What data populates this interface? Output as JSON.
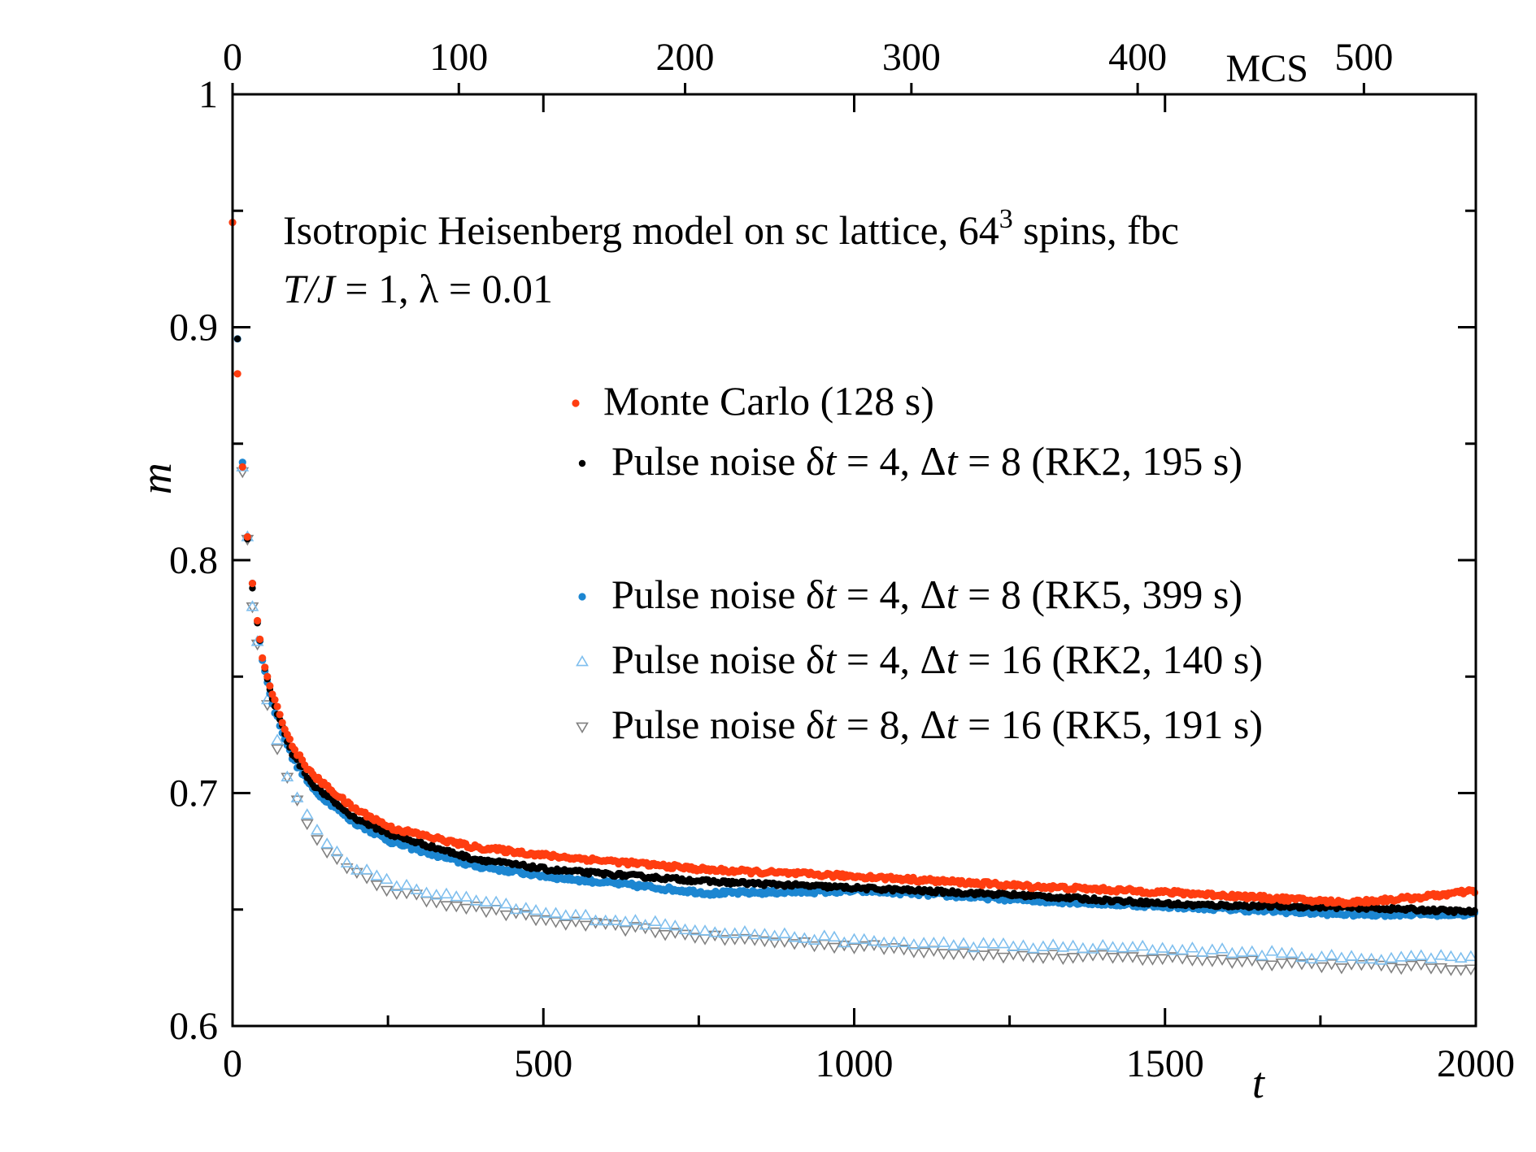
{
  "chart_data": {
    "type": "scatter",
    "title": "",
    "xlabel": "t",
    "ylabel": "m",
    "xlim": [
      0,
      2000
    ],
    "ylim": [
      0.6,
      1.0
    ],
    "xticks": [
      "0",
      "500",
      "1000",
      "1500",
      "2000"
    ],
    "yticks": [
      "0.6",
      "0.7",
      "0.8",
      "0.9",
      "1"
    ],
    "top_axis": {
      "label": "MCS",
      "ticks": [
        "0",
        "100",
        "200",
        "300",
        "400",
        "500"
      ],
      "ratio_t_per_mcs": 3.64
    },
    "annotation": {
      "line1_main": "Isotropic Heisenberg model on sc lattice, 64",
      "line1_sup": "3",
      "line1_tail": " spins, fbc",
      "line2_var": "T/J",
      "line2_rest": "  = 1, λ = 0.01"
    },
    "legend_position": "upper-right",
    "series": [
      {
        "name": "Monte Carlo (128 s)",
        "legend_parts": [
          "Monte Carlo (128 s)"
        ],
        "marker": "dot",
        "color": "#ff3d10",
        "x": [
          0,
          8,
          16,
          24,
          32,
          48,
          64,
          96,
          128,
          192,
          256,
          384,
          512,
          768,
          1024,
          1280,
          1536,
          1792,
          1900,
          2000
        ],
        "y": [
          0.945,
          0.88,
          0.84,
          0.81,
          0.79,
          0.758,
          0.742,
          0.72,
          0.708,
          0.694,
          0.685,
          0.677,
          0.673,
          0.667,
          0.664,
          0.66,
          0.657,
          0.653,
          0.655,
          0.658
        ]
      },
      {
        "name": "Pulse noise δt = 4, Δt = 8 (RK2, 195 s)",
        "legend_parts": [
          "Pulse noise δ",
          "t",
          " = 4, Δ",
          "t",
          " = 8 (RK2, 195 s)"
        ],
        "marker": "smalldot",
        "color": "#000000",
        "x": [
          8,
          16,
          24,
          32,
          48,
          64,
          96,
          128,
          192,
          256,
          384,
          512,
          768,
          1024,
          1280,
          1536,
          1792,
          2000
        ],
        "y": [
          0.895,
          0.84,
          0.809,
          0.788,
          0.758,
          0.74,
          0.717,
          0.704,
          0.69,
          0.682,
          0.672,
          0.667,
          0.662,
          0.659,
          0.656,
          0.652,
          0.651,
          0.649
        ]
      },
      {
        "name": "Pulse noise δt = 4, Δt = 8 (RK5, 399 s)",
        "legend_parts": [
          "Pulse noise δ",
          "t",
          " = 4, Δ",
          "t",
          " = 8 (RK5, 399 s)"
        ],
        "marker": "dot",
        "color": "#1c86d1",
        "x": [
          8,
          16,
          24,
          32,
          48,
          64,
          96,
          128,
          192,
          256,
          384,
          512,
          768,
          1024,
          1280,
          1536,
          1792,
          2000
        ],
        "y": [
          0.895,
          0.842,
          0.81,
          0.79,
          0.757,
          0.738,
          0.715,
          0.702,
          0.688,
          0.679,
          0.669,
          0.664,
          0.657,
          0.658,
          0.654,
          0.651,
          0.648,
          0.648
        ]
      },
      {
        "name": "Pulse noise δt = 4, Δt = 16 (RK2, 140 s)",
        "legend_parts": [
          "Pulse noise δ",
          "t",
          " = 4, Δ",
          "t",
          " = 16 (RK2, 140 s)"
        ],
        "marker": "triangle-up",
        "color": "#7fbfee",
        "x": [
          16,
          32,
          48,
          64,
          80,
          96,
          128,
          160,
          192,
          256,
          320,
          384,
          512,
          640,
          768,
          1024,
          1280,
          1536,
          1792,
          2000
        ],
        "y": [
          0.84,
          0.78,
          0.75,
          0.73,
          0.714,
          0.702,
          0.686,
          0.676,
          0.669,
          0.661,
          0.657,
          0.654,
          0.648,
          0.645,
          0.641,
          0.636,
          0.634,
          0.633,
          0.629,
          0.63
        ]
      },
      {
        "name": "Pulse noise δt = 8, Δt = 16 (RK5, 191 s)",
        "legend_parts": [
          "Pulse noise δ",
          "t",
          " = 8, Δ",
          "t",
          " = 16 (RK5, 191 s)"
        ],
        "marker": "triangle-down",
        "color": "#808080",
        "x": [
          16,
          32,
          48,
          64,
          80,
          96,
          128,
          160,
          192,
          256,
          320,
          384,
          512,
          640,
          768,
          1024,
          1280,
          1536,
          1792,
          2000
        ],
        "y": [
          0.838,
          0.78,
          0.748,
          0.728,
          0.712,
          0.7,
          0.684,
          0.673,
          0.666,
          0.658,
          0.654,
          0.651,
          0.645,
          0.642,
          0.638,
          0.634,
          0.63,
          0.629,
          0.626,
          0.625
        ]
      }
    ]
  }
}
